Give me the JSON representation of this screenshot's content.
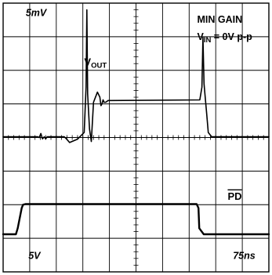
{
  "chart_data": {
    "type": "line",
    "title": "",
    "annotations": {
      "ch1_scale": "5mV",
      "ch2_scale": "5V",
      "time_scale": "75ns",
      "condition_line1": "MIN GAIN",
      "condition_line2_main": "V",
      "condition_line2_sub": "IN",
      "condition_line2_rest": " = 0V p-p"
    },
    "series": [
      {
        "name_main": "V",
        "name_sub": "OUT",
        "x_unit": "div",
        "y_unit": "div",
        "x": [
          0,
          1.3,
          1.36,
          1.42,
          1.48,
          1.55,
          1.6,
          1.66,
          2.3,
          2.38,
          2.5,
          2.8,
          2.92,
          3.05,
          3.12,
          3.15,
          3.18,
          3.25,
          3.32,
          3.4,
          3.55,
          3.64,
          3.68,
          3.72,
          3.76,
          3.8,
          3.86,
          3.95,
          4.05,
          7.4,
          7.48,
          7.52,
          7.56,
          7.6,
          7.66,
          7.72,
          7.85,
          10
        ],
        "y": [
          4.02,
          4.02,
          4.0,
          4.12,
          3.96,
          4.02,
          3.96,
          4.02,
          4.02,
          3.96,
          3.85,
          3.95,
          4.05,
          4.15,
          5.5,
          7.8,
          5.3,
          4.25,
          3.88,
          5.05,
          5.35,
          5.2,
          4.95,
          5.0,
          5.12,
          5.05,
          5.05,
          5.1,
          5.1,
          5.12,
          5.5,
          6.98,
          5.6,
          5.25,
          4.7,
          4.15,
          4.02,
          4.02
        ]
      },
      {
        "name_main": "PD",
        "x_unit": "div",
        "y_unit": "div",
        "x": [
          0,
          0.48,
          0.55,
          0.7,
          0.75,
          0.85,
          7.28,
          7.35,
          7.38,
          7.55,
          10
        ],
        "y": [
          1.12,
          1.12,
          1.3,
          1.9,
          2.0,
          2.02,
          2.02,
          1.9,
          1.3,
          1.12,
          1.12
        ]
      }
    ],
    "grid": true,
    "divisions": {
      "x": 10,
      "y": 8
    },
    "xlim": [
      0,
      10
    ],
    "ylim": [
      0,
      8
    ]
  }
}
